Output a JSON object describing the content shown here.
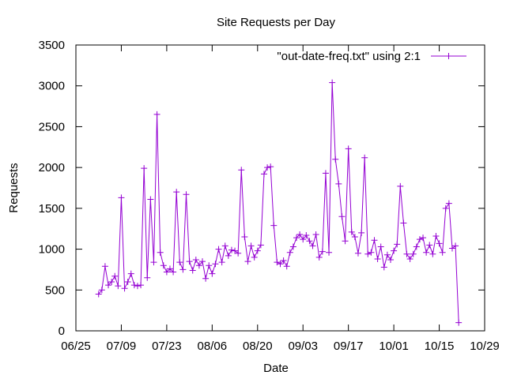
{
  "chart_data": {
    "type": "line",
    "title": "Site Requests per Day",
    "xlabel": "Date",
    "ylabel": "Requests",
    "x_axis": {
      "type": "date",
      "min": "2012-06-25",
      "max": "2012-10-29"
    },
    "ylim": [
      0,
      3500
    ],
    "x_ticks": [
      {
        "date": "2012-06-25",
        "label": "06/25"
      },
      {
        "date": "2012-07-09",
        "label": "07/09"
      },
      {
        "date": "2012-07-23",
        "label": "07/23"
      },
      {
        "date": "2012-08-06",
        "label": "08/06"
      },
      {
        "date": "2012-08-20",
        "label": "08/20"
      },
      {
        "date": "2012-09-03",
        "label": "09/03"
      },
      {
        "date": "2012-09-17",
        "label": "09/17"
      },
      {
        "date": "2012-10-01",
        "label": "10/01"
      },
      {
        "date": "2012-10-15",
        "label": "10/15"
      },
      {
        "date": "2012-10-29",
        "label": "10/29"
      }
    ],
    "y_ticks": [
      {
        "value": 0,
        "label": "0"
      },
      {
        "value": 500,
        "label": "500"
      },
      {
        "value": 1000,
        "label": "1000"
      },
      {
        "value": 1500,
        "label": "1500"
      },
      {
        "value": 2000,
        "label": "2000"
      },
      {
        "value": 2500,
        "label": "2500"
      },
      {
        "value": 3000,
        "label": "3000"
      },
      {
        "value": 3500,
        "label": "3500"
      }
    ],
    "grid": false,
    "legend_position": "top-right",
    "series": [
      {
        "name": "\"out-date-freq.txt\" using 2:1",
        "color": "#9400d3",
        "marker": "plus",
        "points": [
          [
            "2012-07-02",
            450
          ],
          [
            "2012-07-03",
            500
          ],
          [
            "2012-07-04",
            790
          ],
          [
            "2012-07-05",
            560
          ],
          [
            "2012-07-06",
            600
          ],
          [
            "2012-07-07",
            670
          ],
          [
            "2012-07-08",
            550
          ],
          [
            "2012-07-09",
            1630
          ],
          [
            "2012-07-10",
            520
          ],
          [
            "2012-07-11",
            600
          ],
          [
            "2012-07-12",
            700
          ],
          [
            "2012-07-13",
            560
          ],
          [
            "2012-07-14",
            550
          ],
          [
            "2012-07-15",
            560
          ],
          [
            "2012-07-16",
            1990
          ],
          [
            "2012-07-17",
            650
          ],
          [
            "2012-07-18",
            1610
          ],
          [
            "2012-07-19",
            840
          ],
          [
            "2012-07-20",
            2650
          ],
          [
            "2012-07-21",
            960
          ],
          [
            "2012-07-22",
            800
          ],
          [
            "2012-07-23",
            720
          ],
          [
            "2012-07-24",
            760
          ],
          [
            "2012-07-25",
            720
          ],
          [
            "2012-07-26",
            1700
          ],
          [
            "2012-07-27",
            840
          ],
          [
            "2012-07-28",
            750
          ],
          [
            "2012-07-29",
            1670
          ],
          [
            "2012-07-30",
            850
          ],
          [
            "2012-07-31",
            740
          ],
          [
            "2012-08-01",
            870
          ],
          [
            "2012-08-02",
            800
          ],
          [
            "2012-08-03",
            850
          ],
          [
            "2012-08-04",
            640
          ],
          [
            "2012-08-05",
            800
          ],
          [
            "2012-08-06",
            700
          ],
          [
            "2012-08-07",
            820
          ],
          [
            "2012-08-08",
            1000
          ],
          [
            "2012-08-09",
            840
          ],
          [
            "2012-08-10",
            1040
          ],
          [
            "2012-08-11",
            920
          ],
          [
            "2012-08-12",
            990
          ],
          [
            "2012-08-13",
            980
          ],
          [
            "2012-08-14",
            950
          ],
          [
            "2012-08-15",
            1970
          ],
          [
            "2012-08-16",
            1150
          ],
          [
            "2012-08-17",
            850
          ],
          [
            "2012-08-18",
            1040
          ],
          [
            "2012-08-19",
            900
          ],
          [
            "2012-08-20",
            980
          ],
          [
            "2012-08-21",
            1050
          ],
          [
            "2012-08-22",
            1920
          ],
          [
            "2012-08-23",
            2000
          ],
          [
            "2012-08-24",
            2010
          ],
          [
            "2012-08-25",
            1290
          ],
          [
            "2012-08-26",
            840
          ],
          [
            "2012-08-27",
            820
          ],
          [
            "2012-08-28",
            860
          ],
          [
            "2012-08-29",
            790
          ],
          [
            "2012-08-30",
            960
          ],
          [
            "2012-08-31",
            1030
          ],
          [
            "2012-09-01",
            1140
          ],
          [
            "2012-09-02",
            1180
          ],
          [
            "2012-09-03",
            1120
          ],
          [
            "2012-09-04",
            1170
          ],
          [
            "2012-09-05",
            1100
          ],
          [
            "2012-09-06",
            1040
          ],
          [
            "2012-09-07",
            1180
          ],
          [
            "2012-09-08",
            900
          ],
          [
            "2012-09-09",
            970
          ],
          [
            "2012-09-10",
            1930
          ],
          [
            "2012-09-11",
            960
          ],
          [
            "2012-09-12",
            3040
          ],
          [
            "2012-09-13",
            2100
          ],
          [
            "2012-09-14",
            1800
          ],
          [
            "2012-09-15",
            1400
          ],
          [
            "2012-09-16",
            1100
          ],
          [
            "2012-09-17",
            2230
          ],
          [
            "2012-09-18",
            1210
          ],
          [
            "2012-09-19",
            1150
          ],
          [
            "2012-09-20",
            950
          ],
          [
            "2012-09-21",
            1200
          ],
          [
            "2012-09-22",
            2120
          ],
          [
            "2012-09-23",
            940
          ],
          [
            "2012-09-24",
            960
          ],
          [
            "2012-09-25",
            1110
          ],
          [
            "2012-09-26",
            880
          ],
          [
            "2012-09-27",
            1030
          ],
          [
            "2012-09-28",
            780
          ],
          [
            "2012-09-29",
            930
          ],
          [
            "2012-09-30",
            870
          ],
          [
            "2012-10-01",
            980
          ],
          [
            "2012-10-02",
            1060
          ],
          [
            "2012-10-03",
            1770
          ],
          [
            "2012-10-04",
            1320
          ],
          [
            "2012-10-05",
            940
          ],
          [
            "2012-10-06",
            880
          ],
          [
            "2012-10-07",
            940
          ],
          [
            "2012-10-08",
            1030
          ],
          [
            "2012-10-09",
            1120
          ],
          [
            "2012-10-10",
            1140
          ],
          [
            "2012-10-11",
            960
          ],
          [
            "2012-10-12",
            1050
          ],
          [
            "2012-10-13",
            940
          ],
          [
            "2012-10-14",
            1160
          ],
          [
            "2012-10-15",
            1070
          ],
          [
            "2012-10-16",
            960
          ],
          [
            "2012-10-17",
            1500
          ],
          [
            "2012-10-18",
            1560
          ],
          [
            "2012-10-19",
            1010
          ],
          [
            "2012-10-20",
            1040
          ],
          [
            "2012-10-21",
            100
          ]
        ]
      }
    ]
  }
}
